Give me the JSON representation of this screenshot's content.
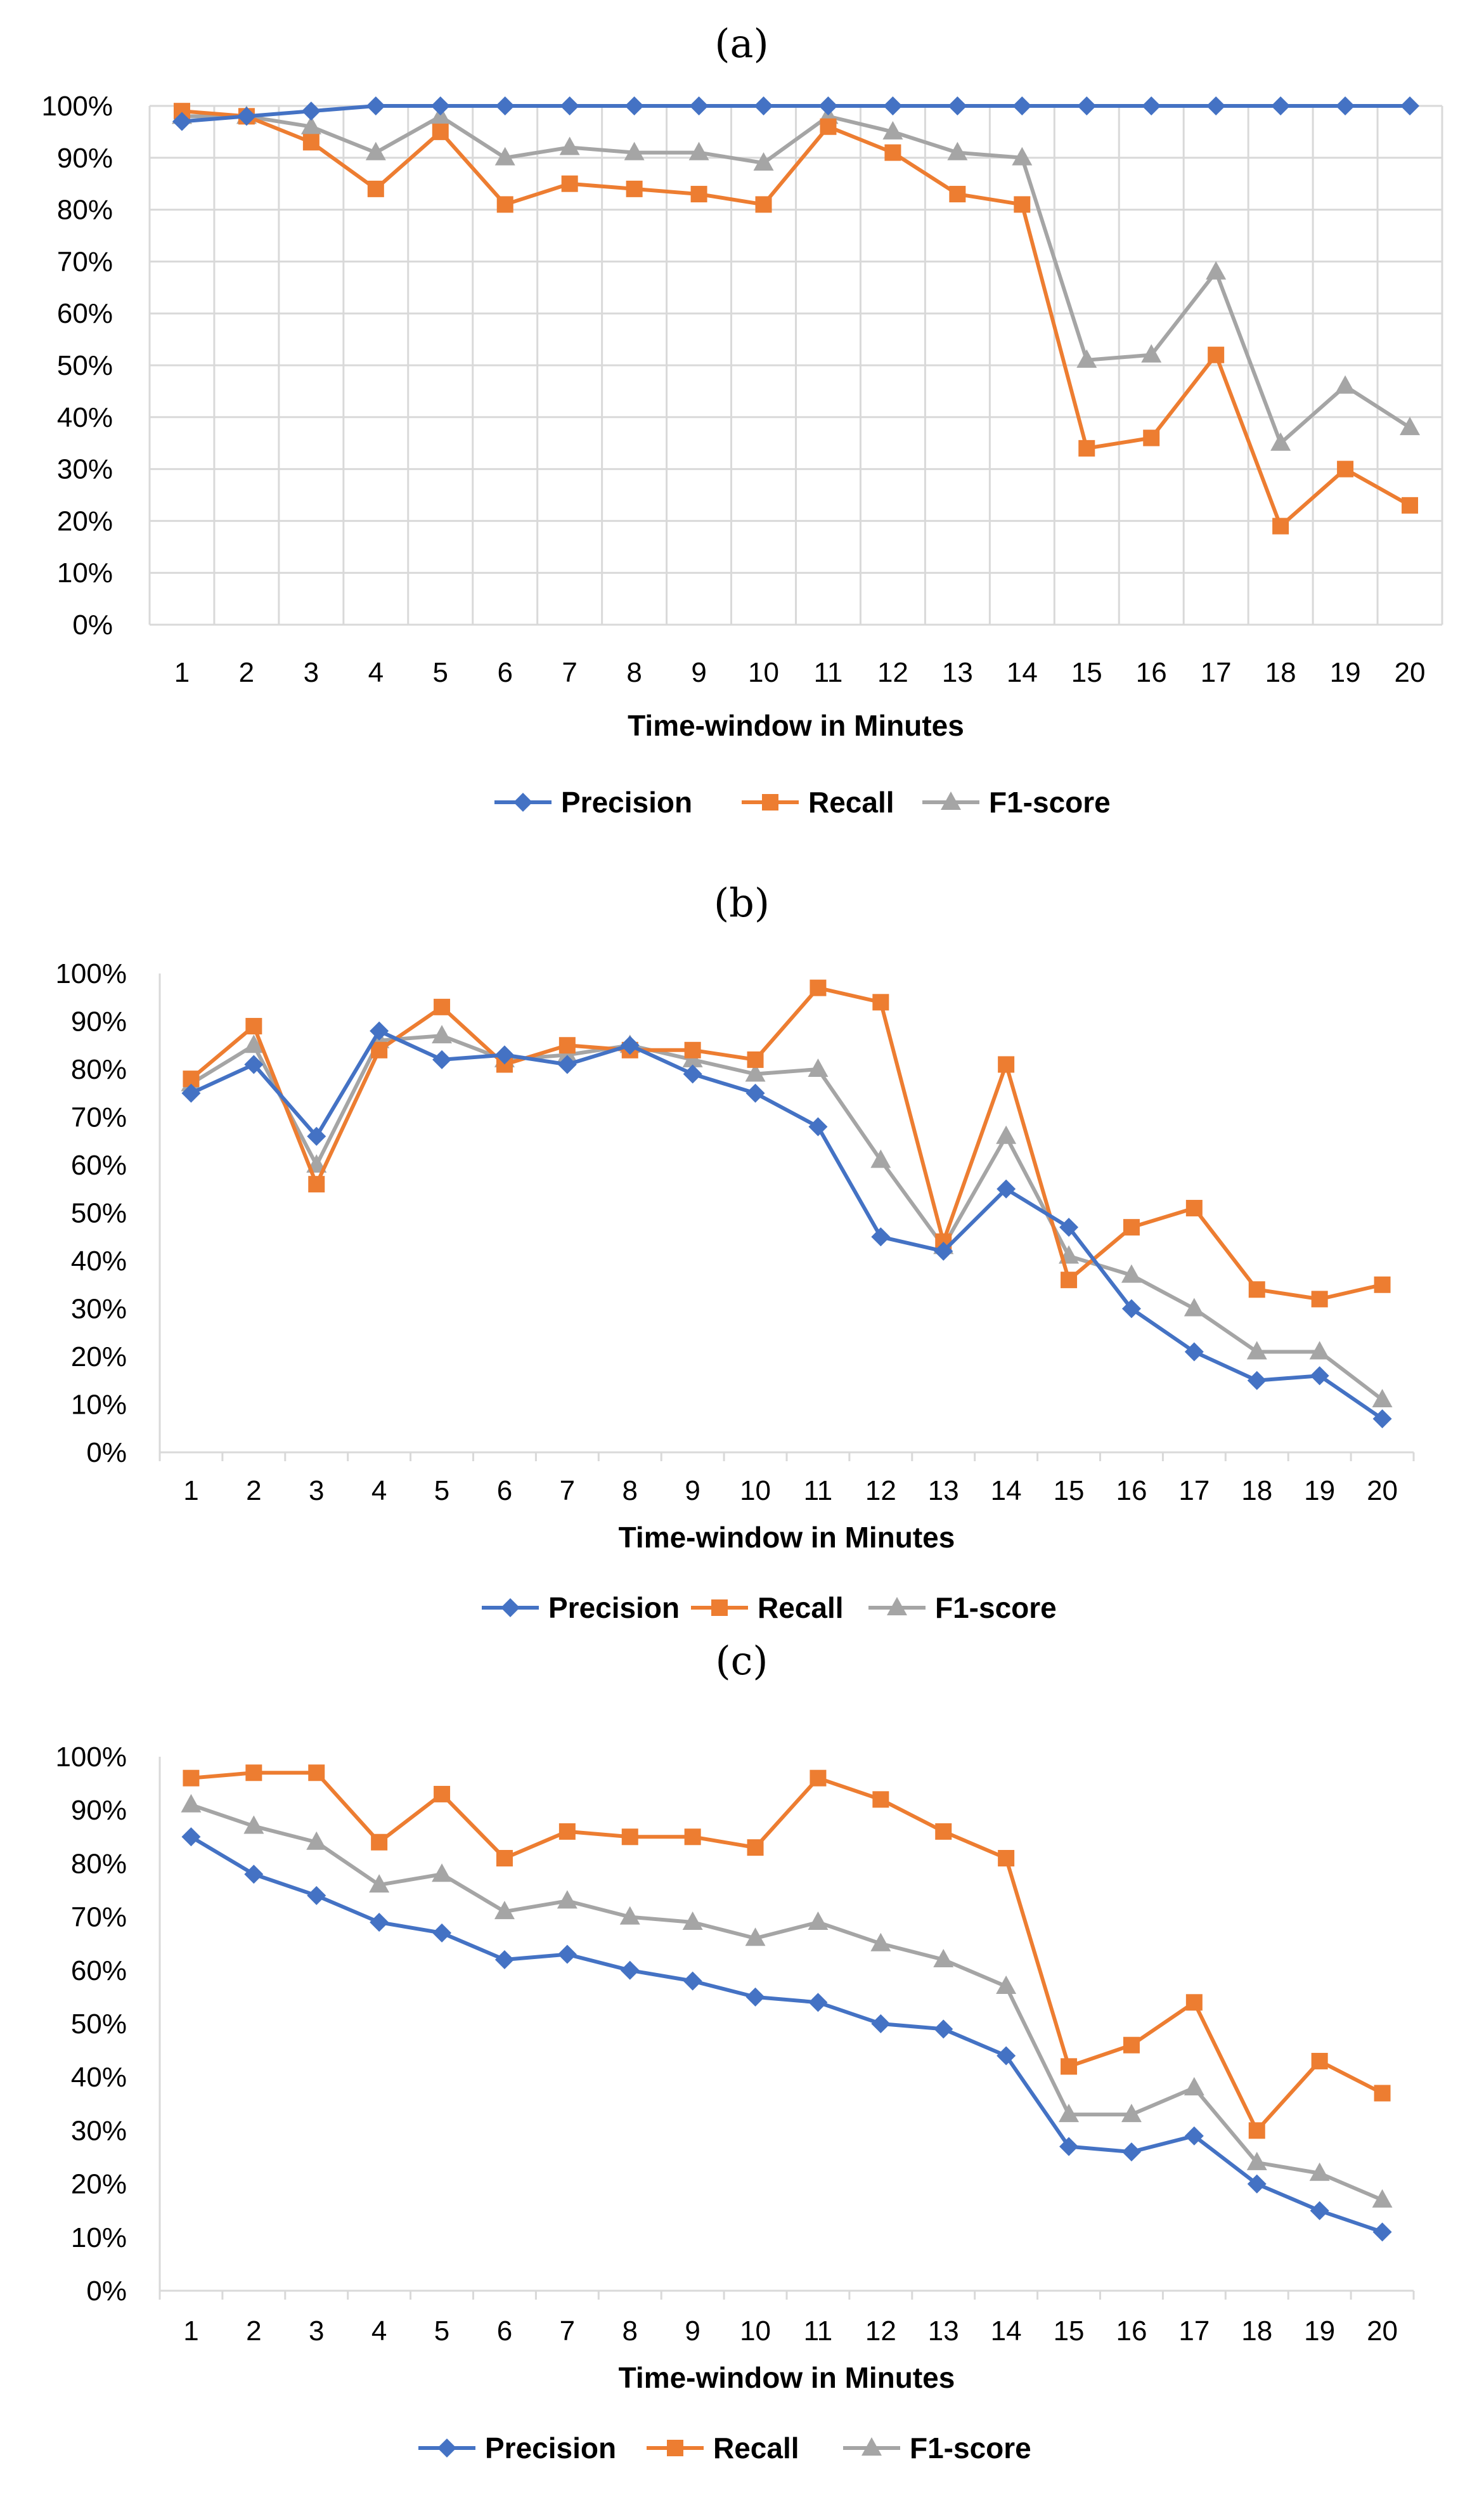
{
  "chart_data": [
    {
      "type": "line",
      "panel_label": "(a)",
      "categories": [
        "1",
        "2",
        "3",
        "4",
        "5",
        "6",
        "7",
        "8",
        "9",
        "10",
        "11",
        "12",
        "13",
        "14",
        "15",
        "16",
        "17",
        "18",
        "19",
        "20"
      ],
      "y_ticks": [
        "0%",
        "10%",
        "20%",
        "30%",
        "40%",
        "50%",
        "60%",
        "70%",
        "80%",
        "90%",
        "100%"
      ],
      "xlabel": "Time-window in Minutes",
      "ylabel": "",
      "ylim": [
        0,
        100
      ],
      "grid": true,
      "legend_position": "bottom",
      "series": [
        {
          "name": "Precision",
          "color": "#4472C4",
          "marker": "diamond",
          "values": [
            97,
            98,
            99,
            100,
            100,
            100,
            100,
            100,
            100,
            100,
            100,
            100,
            100,
            100,
            100,
            100,
            100,
            100,
            100,
            100
          ]
        },
        {
          "name": "Recall",
          "color": "#ED7D31",
          "marker": "square",
          "values": [
            99,
            98,
            93,
            84,
            95,
            81,
            85,
            84,
            83,
            81,
            96,
            91,
            83,
            81,
            34,
            36,
            52,
            19,
            30,
            23
          ]
        },
        {
          "name": "F1-score",
          "color": "#A5A5A5",
          "marker": "triangle",
          "values": [
            98,
            98,
            96,
            91,
            98,
            90,
            92,
            91,
            91,
            89,
            98,
            95,
            91,
            90,
            51,
            52,
            68,
            35,
            46,
            38
          ]
        }
      ]
    },
    {
      "type": "line",
      "panel_label": "(b)",
      "categories": [
        "1",
        "2",
        "3",
        "4",
        "5",
        "6",
        "7",
        "8",
        "9",
        "10",
        "11",
        "12",
        "13",
        "14",
        "15",
        "16",
        "17",
        "18",
        "19",
        "20"
      ],
      "y_ticks": [
        "0%",
        "10%",
        "20%",
        "30%",
        "40%",
        "50%",
        "60%",
        "70%",
        "80%",
        "90%",
        "100%"
      ],
      "xlabel": "Time-window in Minutes",
      "ylabel": "",
      "ylim": [
        0,
        100
      ],
      "grid": false,
      "legend_position": "bottom",
      "series": [
        {
          "name": "Precision",
          "color": "#4472C4",
          "marker": "diamond",
          "values": [
            75,
            81,
            66,
            88,
            82,
            83,
            81,
            85,
            79,
            75,
            68,
            45,
            42,
            55,
            47,
            30,
            21,
            15,
            16,
            7
          ]
        },
        {
          "name": "Recall",
          "color": "#ED7D31",
          "marker": "square",
          "values": [
            78,
            89,
            56,
            84,
            93,
            81,
            85,
            84,
            84,
            82,
            97,
            94,
            44,
            81,
            36,
            47,
            51,
            34,
            32,
            35
          ]
        },
        {
          "name": "F1-score",
          "color": "#A5A5A5",
          "marker": "triangle",
          "values": [
            77,
            85,
            60,
            86,
            87,
            82,
            83,
            85,
            82,
            79,
            80,
            61,
            43,
            66,
            41,
            37,
            30,
            21,
            21,
            11
          ]
        }
      ]
    },
    {
      "type": "line",
      "panel_label": "(c)",
      "categories": [
        "1",
        "2",
        "3",
        "4",
        "5",
        "6",
        "7",
        "8",
        "9",
        "10",
        "11",
        "12",
        "13",
        "14",
        "15",
        "16",
        "17",
        "18",
        "19",
        "20"
      ],
      "y_ticks": [
        "0%",
        "10%",
        "20%",
        "30%",
        "40%",
        "50%",
        "60%",
        "70%",
        "80%",
        "90%",
        "100%"
      ],
      "xlabel": "Time-window in Minutes",
      "ylabel": "",
      "ylim": [
        0,
        100
      ],
      "grid": false,
      "legend_position": "bottom",
      "series": [
        {
          "name": "Precision",
          "color": "#4472C4",
          "marker": "diamond",
          "values": [
            85,
            78,
            74,
            69,
            67,
            62,
            63,
            60,
            58,
            55,
            54,
            50,
            49,
            44,
            27,
            26,
            29,
            20,
            15,
            11
          ]
        },
        {
          "name": "Recall",
          "color": "#ED7D31",
          "marker": "square",
          "values": [
            96,
            97,
            97,
            84,
            93,
            81,
            86,
            85,
            85,
            83,
            96,
            92,
            86,
            81,
            42,
            46,
            54,
            30,
            43,
            37
          ]
        },
        {
          "name": "F1-score",
          "color": "#A5A5A5",
          "marker": "triangle",
          "values": [
            91,
            87,
            84,
            76,
            78,
            71,
            73,
            70,
            69,
            66,
            69,
            65,
            62,
            57,
            33,
            33,
            38,
            24,
            22,
            17
          ]
        }
      ]
    }
  ]
}
